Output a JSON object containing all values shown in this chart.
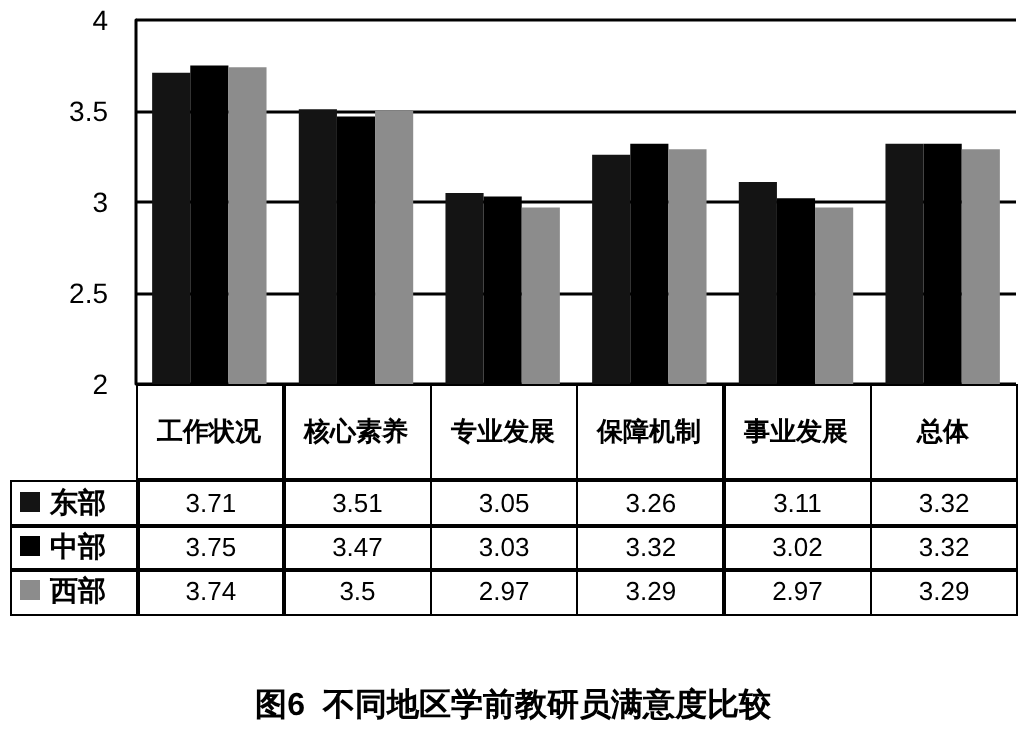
{
  "chart_data": {
    "type": "bar",
    "title": "图6  不同地区学前教研员满意度比较",
    "categories": [
      "工作状况",
      "核心素养",
      "专业发展",
      "保障机制",
      "事业发展",
      "总体"
    ],
    "series": [
      {
        "name": "东部",
        "color": "#141414",
        "values": [
          3.71,
          3.51,
          3.05,
          3.26,
          3.11,
          3.32
        ]
      },
      {
        "name": "中部",
        "color": "#000000",
        "values": [
          3.75,
          3.47,
          3.03,
          3.32,
          3.02,
          3.32
        ]
      },
      {
        "name": "西部",
        "color": "#8c8c8c",
        "values": [
          3.74,
          3.5,
          2.97,
          3.29,
          2.97,
          3.29
        ]
      }
    ],
    "ylim": [
      2,
      4
    ],
    "yticks": [
      2,
      2.5,
      3,
      3.5,
      4
    ],
    "grid": "y",
    "legend": "bottom left",
    "data_labels": true
  }
}
